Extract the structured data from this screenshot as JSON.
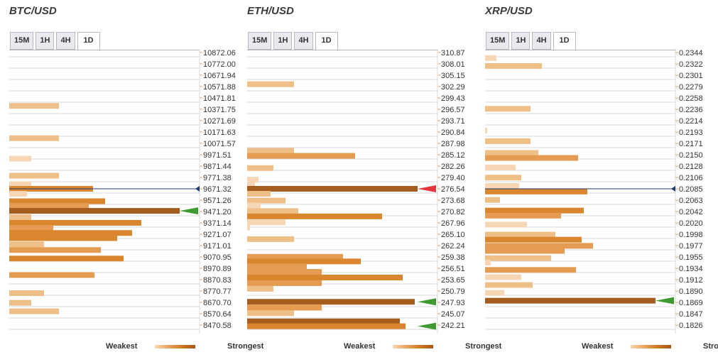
{
  "legend": {
    "weakest": "Weakest",
    "strongest": "Strongest"
  },
  "colors": {
    "c1": "#f6d6b5",
    "c2": "#efbf88",
    "c3": "#e59c52",
    "c4": "#d9862f",
    "c5": "#a45c1f",
    "grid": "#dadada",
    "axis": "#ec9a55",
    "line": "#1f3d6f",
    "red": "#e4363d",
    "green": "#3f9a32"
  },
  "chart_data": [
    {
      "type": "bar",
      "title": "BTC/USD",
      "tabs": [
        "15M",
        "1H",
        "4H",
        "1D"
      ],
      "active_tab": "1D",
      "orientation": "horizontal",
      "axis_labels": [
        "10872.06",
        "10772.00",
        "10671.94",
        "10571.88",
        "10471.81",
        "10371.75",
        "10271.69",
        "10171.63",
        "10071.57",
        "9971.51",
        "9871.44",
        "9771.38",
        "9671.32",
        "9571.26",
        "9471.20",
        "9371.14",
        "9271.07",
        "9171.01",
        "9070.95",
        "8970.89",
        "8870.83",
        "8770.77",
        "8670.70",
        "8570.64",
        "8470.58"
      ],
      "ylim": [
        8470.58,
        10872.06
      ],
      "bars": [
        {
          "y": 10401.8,
          "value": 70,
          "strength": 2
        },
        {
          "y": 10116.8,
          "value": 70,
          "strength": 2
        },
        {
          "y": 9936.8,
          "value": 31,
          "strength": 1
        },
        {
          "y": 9786.8,
          "value": 70,
          "strength": 2
        },
        {
          "y": 9711.8,
          "value": 31,
          "strength": 1
        },
        {
          "y": 9671.3,
          "value": 118,
          "strength": 4
        },
        {
          "y": 9626.8,
          "value": 25,
          "strength": 1
        },
        {
          "y": 9561.8,
          "value": 135,
          "strength": 4
        },
        {
          "y": 9521.8,
          "value": 112,
          "strength": 3
        },
        {
          "y": 9476.8,
          "value": 240,
          "strength": 5
        },
        {
          "y": 9421.8,
          "value": 31,
          "strength": 2
        },
        {
          "y": 9371.8,
          "value": 186,
          "strength": 4
        },
        {
          "y": 9326.8,
          "value": 62,
          "strength": 3
        },
        {
          "y": 9281.8,
          "value": 173,
          "strength": 4
        },
        {
          "y": 9236.8,
          "value": 152,
          "strength": 4
        },
        {
          "y": 9181.8,
          "value": 49,
          "strength": 2
        },
        {
          "y": 9131.8,
          "value": 129,
          "strength": 3
        },
        {
          "y": 9056.8,
          "value": 161,
          "strength": 4
        },
        {
          "y": 8911.8,
          "value": 120,
          "strength": 3
        },
        {
          "y": 8751.8,
          "value": 49,
          "strength": 2
        },
        {
          "y": 8666.8,
          "value": 31,
          "strength": 2
        },
        {
          "y": 8591.8,
          "value": 70,
          "strength": 2
        }
      ],
      "current_price": 9671.32,
      "markers": [
        {
          "y": 9476.8,
          "color": "green"
        }
      ]
    },
    {
      "type": "bar",
      "title": "ETH/USD",
      "tabs": [
        "15M",
        "1H",
        "4H",
        "1D"
      ],
      "active_tab": "1D",
      "orientation": "horizontal",
      "axis_labels": [
        "310.87",
        "308.01",
        "305.15",
        "302.29",
        "299.43",
        "296.57",
        "293.71",
        "290.84",
        "287.98",
        "285.12",
        "282.26",
        "279.40",
        "276.54",
        "273.68",
        "270.82",
        "267.96",
        "265.10",
        "262.24",
        "259.38",
        "256.51",
        "253.65",
        "250.79",
        "247.93",
        "245.07",
        "242.21"
      ],
      "ylim": [
        242.21,
        310.87
      ],
      "bars": [
        {
          "y": 302.89,
          "value": 66,
          "strength": 2
        },
        {
          "y": 286.12,
          "value": 66,
          "strength": 2
        },
        {
          "y": 284.84,
          "value": 152,
          "strength": 3
        },
        {
          "y": 281.77,
          "value": 37,
          "strength": 2
        },
        {
          "y": 278.84,
          "value": 16,
          "strength": 1
        },
        {
          "y": 277.43,
          "value": 11,
          "strength": 1
        },
        {
          "y": 276.54,
          "value": 240,
          "strength": 5
        },
        {
          "y": 275.28,
          "value": 33,
          "strength": 2
        },
        {
          "y": 273.56,
          "value": 54,
          "strength": 2
        },
        {
          "y": 272.34,
          "value": 19,
          "strength": 1
        },
        {
          "y": 270.92,
          "value": 72,
          "strength": 2
        },
        {
          "y": 269.59,
          "value": 190,
          "strength": 4
        },
        {
          "y": 268.08,
          "value": 54,
          "strength": 1
        },
        {
          "y": 266.79,
          "value": 4,
          "strength": 1
        },
        {
          "y": 263.86,
          "value": 66,
          "strength": 2
        },
        {
          "y": 259.41,
          "value": 135,
          "strength": 3
        },
        {
          "y": 258.24,
          "value": 160,
          "strength": 4
        },
        {
          "y": 256.98,
          "value": 84,
          "strength": 3
        },
        {
          "y": 255.61,
          "value": 105,
          "strength": 3
        },
        {
          "y": 254.19,
          "value": 219,
          "strength": 4
        },
        {
          "y": 252.77,
          "value": 105,
          "strength": 3
        },
        {
          "y": 251.35,
          "value": 37,
          "strength": 2
        },
        {
          "y": 248.07,
          "value": 236,
          "strength": 5
        },
        {
          "y": 246.6,
          "value": 105,
          "strength": 3
        },
        {
          "y": 245.21,
          "value": 66,
          "strength": 2
        },
        {
          "y": 243.14,
          "value": 215,
          "strength": 5
        },
        {
          "y": 241.92,
          "value": 223,
          "strength": 4
        }
      ],
      "current_price": 276.54,
      "markers": [
        {
          "y": 276.54,
          "color": "red"
        },
        {
          "y": 248.07,
          "color": "green"
        },
        {
          "y": 241.92,
          "color": "green"
        }
      ]
    },
    {
      "type": "bar",
      "title": "XRP/USD",
      "tabs": [
        "15M",
        "1H",
        "4H",
        "1D"
      ],
      "active_tab": "1D",
      "orientation": "horizontal",
      "axis_labels": [
        "0.2344",
        "0.2322",
        "0.2301",
        "0.2279",
        "0.2258",
        "0.2236",
        "0.2214",
        "0.2193",
        "0.2171",
        "0.2150",
        "0.2128",
        "0.2106",
        "0.2085",
        "0.2063",
        "0.2042",
        "0.2020",
        "0.1998",
        "0.1977",
        "0.1955",
        "0.1934",
        "0.1912",
        "0.1890",
        "0.1869",
        "0.1847",
        "0.1826"
      ],
      "ylim": [
        0.1826,
        0.2344
      ],
      "bars": [
        {
          "y": 0.23335,
          "value": 16,
          "strength": 1
        },
        {
          "y": 0.23185,
          "value": 80,
          "strength": 2
        },
        {
          "y": 0.2237,
          "value": 64,
          "strength": 2
        },
        {
          "y": 0.21959,
          "value": 3,
          "strength": 1
        },
        {
          "y": 0.21755,
          "value": 64,
          "strength": 2
        },
        {
          "y": 0.21532,
          "value": 75,
          "strength": 2
        },
        {
          "y": 0.21436,
          "value": 131,
          "strength": 3
        },
        {
          "y": 0.21255,
          "value": 43,
          "strength": 1
        },
        {
          "y": 0.21063,
          "value": 51,
          "strength": 2
        },
        {
          "y": 0.20904,
          "value": 48,
          "strength": 1
        },
        {
          "y": 0.20798,
          "value": 144,
          "strength": 4
        },
        {
          "y": 0.20638,
          "value": 21,
          "strength": 2
        },
        {
          "y": 0.20436,
          "value": 139,
          "strength": 4
        },
        {
          "y": 0.2034,
          "value": 107,
          "strength": 3
        },
        {
          "y": 0.2017,
          "value": 59,
          "strength": 1
        },
        {
          "y": 0.19979,
          "value": 99,
          "strength": 2
        },
        {
          "y": 0.19883,
          "value": 136,
          "strength": 4
        },
        {
          "y": 0.19766,
          "value": 152,
          "strength": 3
        },
        {
          "y": 0.1967,
          "value": 112,
          "strength": 3
        },
        {
          "y": 0.19532,
          "value": 93,
          "strength": 2
        },
        {
          "y": 0.19447,
          "value": 8,
          "strength": 1
        },
        {
          "y": 0.19308,
          "value": 128,
          "strength": 3
        },
        {
          "y": 0.1917,
          "value": 51,
          "strength": 1
        },
        {
          "y": 0.19021,
          "value": 67,
          "strength": 2
        },
        {
          "y": 0.18872,
          "value": 27,
          "strength": 1
        },
        {
          "y": 0.18723,
          "value": 240,
          "strength": 5
        }
      ],
      "current_price": 0.2085,
      "markers": [
        {
          "y": 0.18723,
          "color": "green"
        }
      ]
    }
  ]
}
